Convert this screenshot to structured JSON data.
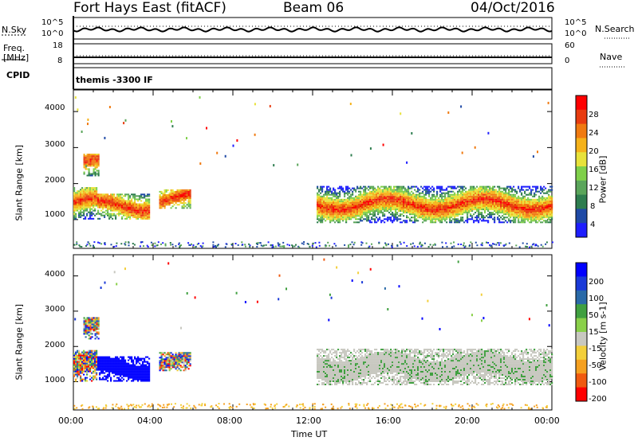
{
  "header": {
    "station": "Fort Hays East (fitACF)",
    "beam": "Beam 06",
    "date": "04/Oct/2016"
  },
  "strips": {
    "nsky_label": "N.Sky",
    "nsky_ticks": [
      "10^5",
      "10^0"
    ],
    "nsearch_label": "N.Search",
    "freq_label_line1": "Freq.",
    "freq_label_line2": "[MHz]",
    "freq_ticks": [
      "18",
      "8"
    ],
    "nave_ticks": [
      "60",
      "0"
    ],
    "nave_label": "Nave",
    "cpid_label": "CPID",
    "cpid_text": "themis -3300 IF"
  },
  "colors": {
    "power_scale": [
      "#1e1eff",
      "#1f4aa6",
      "#2e7d4f",
      "#5aa55a",
      "#7fd04a",
      "#e8e23a",
      "#f5b21a",
      "#f07a10",
      "#e83c10",
      "#ff0000"
    ],
    "velocity_scale": [
      "#ff0000",
      "#f05a10",
      "#f5a020",
      "#f3cf3b",
      "#c8c8c0",
      "#8ad04a",
      "#40a040",
      "#2a6aa8",
      "#1a3ad8",
      "#0000ff"
    ]
  },
  "chart_data": [
    {
      "type": "heatmap",
      "name": "power",
      "ylabel": "Slant Range [km]",
      "yticks": [
        "1000",
        "2000",
        "3000",
        "4000"
      ],
      "xticks": [
        "00:00",
        "04:00",
        "08:00",
        "12:00",
        "16:00",
        "20:00",
        "00:00"
      ],
      "colorbar_label": "Power [dB]",
      "colorbar_ticks": [
        "4",
        "8",
        "12",
        "16",
        "20",
        "24",
        "28"
      ],
      "ylim": [
        200,
        4600
      ],
      "xlim_hours": [
        0,
        24
      ],
      "echo_regions": [
        {
          "start_h": 0.0,
          "end_h": 1.2,
          "range_lo": 1000,
          "range_hi": 1900
        },
        {
          "start_h": 0.5,
          "end_h": 1.3,
          "range_lo": 2200,
          "range_hi": 2800
        },
        {
          "start_h": 1.2,
          "end_h": 3.8,
          "range_lo": 1000,
          "range_hi": 1700
        },
        {
          "start_h": 4.3,
          "end_h": 5.9,
          "range_lo": 1300,
          "range_hi": 1800
        },
        {
          "start_h": 12.2,
          "end_h": 24.0,
          "range_lo": 900,
          "range_hi": 1900
        }
      ]
    },
    {
      "type": "heatmap",
      "name": "velocity",
      "ylabel": "Slant Range [km]",
      "yticks": [
        "1000",
        "2000",
        "3000",
        "4000"
      ],
      "xticks": [
        "00:00",
        "04:00",
        "08:00",
        "12:00",
        "16:00",
        "20:00",
        "00:00"
      ],
      "xlabel": "Time UT",
      "colorbar_label": "Velocity [m s-1]",
      "colorbar_ticks": [
        "-200",
        "-100",
        "-50",
        "-15",
        "15",
        "50",
        "100",
        "200"
      ],
      "ylim": [
        200,
        4600
      ],
      "xlim_hours": [
        0,
        24
      ]
    }
  ]
}
